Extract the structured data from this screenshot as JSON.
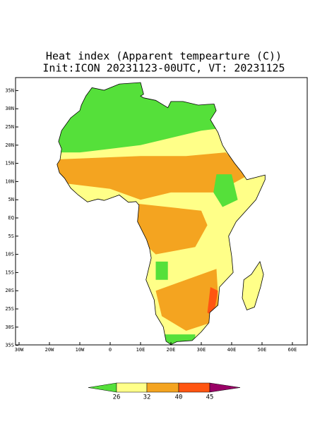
{
  "header": {
    "title": "Heat index (Apparent tempearture (C))",
    "subtitle": "Init:ICON 20231123-00UTC, VT: 20231125"
  },
  "map": {
    "lat_labels": [
      "35N",
      "30N",
      "25N",
      "20N",
      "15N",
      "10N",
      "5N",
      "EQ",
      "5S",
      "10S",
      "15S",
      "20S",
      "25S",
      "30S",
      "35S"
    ],
    "lon_labels": [
      "30W",
      "20W",
      "10W",
      "0",
      "10E",
      "20E",
      "30E",
      "40E",
      "50E",
      "60E"
    ]
  },
  "colorbar": {
    "labels": [
      26,
      32,
      40,
      45
    ]
  }
}
